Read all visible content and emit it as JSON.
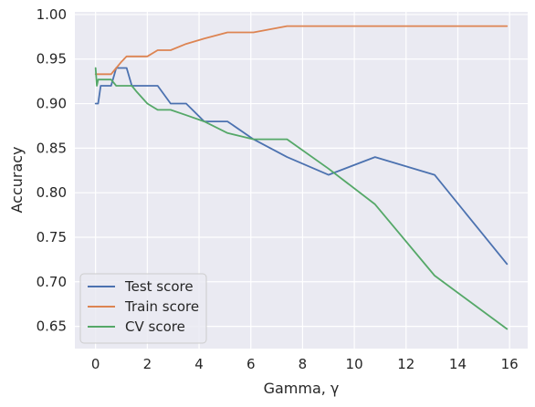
{
  "chart_data": {
    "type": "line",
    "title": "",
    "xlabel": "Gamma, γ",
    "ylabel": "Accuracy",
    "xlim": [
      -0.8,
      16.7
    ],
    "ylim": [
      0.625,
      1.003
    ],
    "xticks": [
      0,
      2,
      4,
      6,
      8,
      10,
      12,
      14,
      16
    ],
    "yticks": [
      0.65,
      0.7,
      0.75,
      0.8,
      0.85,
      0.9,
      0.95,
      1.0
    ],
    "xtick_labels": [
      "0",
      "2",
      "4",
      "6",
      "8",
      "10",
      "12",
      "14",
      "16"
    ],
    "ytick_labels": [
      "0.65",
      "0.70",
      "0.75",
      "0.80",
      "0.85",
      "0.90",
      "0.95",
      "1.00"
    ],
    "grid": true,
    "legend_position": "bottom-left",
    "series": [
      {
        "name": "Test score",
        "color": "#4c72b0",
        "x": [
          0.001,
          0.1,
          0.2,
          0.4,
          0.6,
          0.8,
          1.0,
          1.2,
          1.4,
          1.6,
          2.0,
          2.4,
          2.9,
          3.5,
          4.2,
          5.1,
          6.1,
          7.4,
          9.0,
          10.8,
          13.1,
          15.9
        ],
        "y": [
          0.9,
          0.9,
          0.92,
          0.92,
          0.92,
          0.94,
          0.94,
          0.94,
          0.92,
          0.92,
          0.92,
          0.92,
          0.9,
          0.9,
          0.88,
          0.88,
          0.86,
          0.84,
          0.82,
          0.84,
          0.82,
          0.72
        ]
      },
      {
        "name": "Train score",
        "color": "#dd8452",
        "x": [
          0.001,
          0.1,
          0.2,
          0.4,
          0.6,
          0.8,
          1.0,
          1.2,
          1.4,
          1.6,
          2.0,
          2.4,
          2.9,
          3.5,
          4.2,
          5.1,
          6.1,
          7.4,
          9.0,
          10.8,
          13.1,
          15.9
        ],
        "y": [
          0.933,
          0.933,
          0.933,
          0.933,
          0.933,
          0.94,
          0.947,
          0.953,
          0.953,
          0.953,
          0.953,
          0.96,
          0.96,
          0.967,
          0.973,
          0.98,
          0.98,
          0.987,
          0.987,
          0.987,
          0.987,
          0.987
        ]
      },
      {
        "name": "CV score",
        "color": "#55a868",
        "x": [
          0.001,
          0.05,
          0.1,
          0.2,
          0.4,
          0.6,
          0.8,
          1.0,
          1.2,
          1.4,
          1.6,
          2.0,
          2.4,
          2.9,
          3.5,
          4.2,
          5.1,
          6.1,
          7.4,
          9.0,
          10.8,
          13.1,
          15.9
        ],
        "y": [
          0.94,
          0.92,
          0.927,
          0.927,
          0.927,
          0.927,
          0.92,
          0.92,
          0.92,
          0.92,
          0.913,
          0.9,
          0.893,
          0.893,
          0.887,
          0.88,
          0.867,
          0.86,
          0.86,
          0.827,
          0.787,
          0.707,
          0.647
        ]
      }
    ]
  }
}
